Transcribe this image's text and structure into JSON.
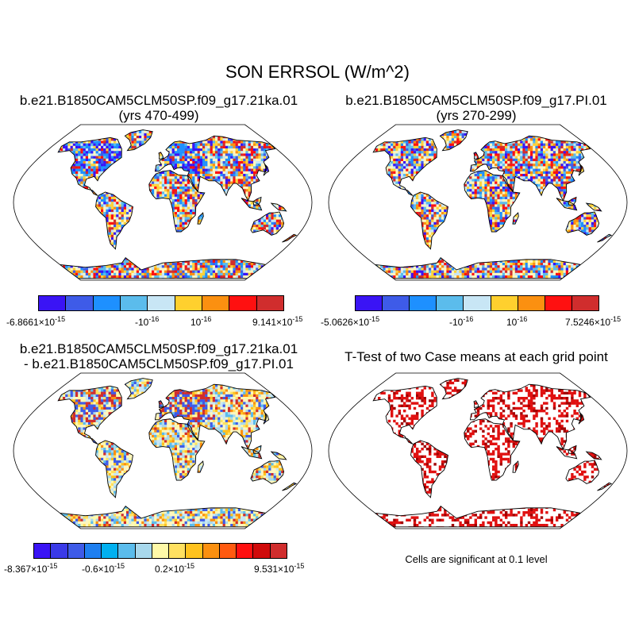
{
  "title": "SON ERRSOL (W/m^2)",
  "panels": [
    {
      "id": "case1",
      "title_line1": "b.e21.B1850CAM5CLM50SP.f09_g17.21ka.01",
      "title_line2": "(yrs 470-499)",
      "palette": [
        "#3a14f5",
        "#3e5be8",
        "#1e90ff",
        "#5bbcec",
        "#c8e6f5",
        "#ffd02e",
        "#fb9010",
        "#ff1010",
        "#d02d2d"
      ],
      "ticks": {
        "min": "-6.8661×10",
        "min_exp": "-15",
        "neg": "-10",
        "neg_exp": "-16",
        "pos": "10",
        "pos_exp": "-16",
        "max": "9.141×10",
        "max_exp": "-15"
      }
    },
    {
      "id": "case2",
      "title_line1": "b.e21.B1850CAM5CLM50SP.f09_g17.PI.01",
      "title_line2": "(yrs 270-299)",
      "palette": [
        "#3a14f5",
        "#3e5be8",
        "#1e90ff",
        "#5bbcec",
        "#c8e6f5",
        "#ffd02e",
        "#fb9010",
        "#ff1010",
        "#d02d2d"
      ],
      "ticks": {
        "min": "-5.0626×10",
        "min_exp": "-15",
        "neg": "-10",
        "neg_exp": "-16",
        "pos": "10",
        "pos_exp": "-16",
        "max": "7.5246×10",
        "max_exp": "-15"
      }
    },
    {
      "id": "diff",
      "title_line1": "b.e21.B1850CAM5CLM50SP.f09_g17.21ka.01",
      "title_line2": "- b.e21.B1850CAM5CLM50SP.f09_g17.PI.01",
      "palette": [
        "#3a14f5",
        "#3a3ae8",
        "#3e5be8",
        "#1e7ff0",
        "#00b0f0",
        "#5bbcec",
        "#a8d8ec",
        "#fff9a8",
        "#ffe060",
        "#ffc21e",
        "#fb9010",
        "#ff5a10",
        "#ff1010",
        "#d00a0a",
        "#d02d2d"
      ],
      "ticks": {
        "min": "-8.367×10",
        "min_exp": "-15",
        "neg": "-0.6×10",
        "neg_exp": "-15",
        "pos": "0.2×10",
        "pos_exp": "-15",
        "max": "9.531×10",
        "max_exp": "-15"
      }
    },
    {
      "id": "ttest",
      "title_line1": "T-Test of two Case means at each grid point",
      "note": "Cells are significant at 0.1 level",
      "significant_color": "#e01010"
    }
  ],
  "colors": {
    "land_case": [
      "#fdf6c0",
      "#ffd23a",
      "#c8e6f5",
      "#5bbcec",
      "#fb9010",
      "#ff1010",
      "#d02d2d",
      "#3e5be8",
      "#3a14f5",
      "#1e90ff"
    ],
    "land_diff": [
      "#fdf6c0",
      "#fff9a8",
      "#c8e6f5",
      "#a8d8ec",
      "#ffe060",
      "#ffc21e",
      "#5bbcec",
      "#fb9010",
      "#3e5be8",
      "#d02d2d"
    ],
    "coast": "#000000"
  }
}
